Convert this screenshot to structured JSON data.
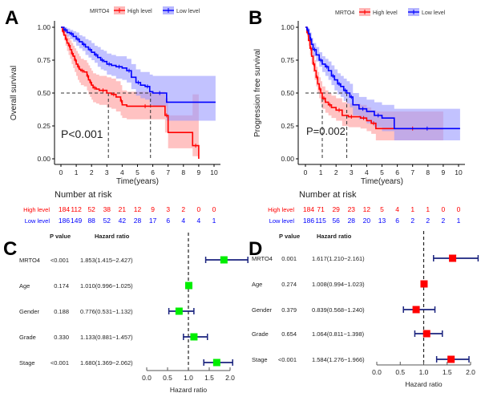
{
  "chart_data": [
    {
      "panel": "A",
      "type": "line",
      "subtype": "kaplan-meier",
      "legend_title": "MRTO4",
      "legend_position": "top",
      "xlabel": "Time(years)",
      "ylabel": "Overall survival",
      "xlim": [
        0,
        10
      ],
      "ylim": [
        0,
        1
      ],
      "xticks": [
        "0",
        "1",
        "2",
        "3",
        "4",
        "5",
        "6",
        "7",
        "8",
        "9",
        "10"
      ],
      "yticks": [
        "0.00",
        "0.25",
        "0.50",
        "0.75",
        "1.00"
      ],
      "pvalue_text": "P<0.001",
      "median_survival": {
        "High level": 3.1,
        "Low level": 5.85
      },
      "series": [
        {
          "name": "High level",
          "color": "#ff0000",
          "band_color": "#ff9999",
          "x": [
            0,
            0.1,
            0.2,
            0.3,
            0.4,
            0.5,
            0.6,
            0.7,
            0.8,
            0.9,
            1.0,
            1.1,
            1.2,
            1.3,
            1.5,
            1.7,
            1.8,
            1.9,
            2.0,
            2.1,
            2.3,
            2.5,
            3.0,
            3.3,
            3.6,
            3.9,
            4.0,
            4.3,
            6.7,
            6.8,
            7.0,
            8.6,
            9.0
          ],
          "y": [
            1.0,
            0.97,
            0.94,
            0.91,
            0.88,
            0.86,
            0.83,
            0.8,
            0.78,
            0.75,
            0.72,
            0.7,
            0.68,
            0.67,
            0.66,
            0.63,
            0.6,
            0.58,
            0.56,
            0.54,
            0.53,
            0.52,
            0.5,
            0.49,
            0.47,
            0.44,
            0.41,
            0.4,
            0.4,
            0.33,
            0.2,
            0.1,
            0.0
          ],
          "lower": [
            1.0,
            0.94,
            0.9,
            0.86,
            0.82,
            0.79,
            0.76,
            0.72,
            0.69,
            0.66,
            0.63,
            0.6,
            0.58,
            0.56,
            0.55,
            0.52,
            0.49,
            0.47,
            0.45,
            0.43,
            0.42,
            0.41,
            0.39,
            0.38,
            0.36,
            0.33,
            0.31,
            0.3,
            0.3,
            0.2,
            0.08,
            0.02,
            0.0
          ],
          "upper": [
            1.0,
            1.0,
            0.98,
            0.96,
            0.94,
            0.92,
            0.9,
            0.88,
            0.86,
            0.84,
            0.82,
            0.8,
            0.78,
            0.76,
            0.75,
            0.73,
            0.71,
            0.69,
            0.67,
            0.65,
            0.64,
            0.63,
            0.62,
            0.61,
            0.59,
            0.56,
            0.52,
            0.51,
            0.51,
            0.46,
            0.33,
            0.49,
            0.49
          ],
          "at_risk": [
            184,
            112,
            52,
            38,
            21,
            12,
            9,
            3,
            2,
            0,
            0
          ]
        },
        {
          "name": "Low level",
          "color": "#0000ff",
          "band_color": "#9999ff",
          "x": [
            0,
            0.2,
            0.4,
            0.6,
            0.8,
            1.0,
            1.2,
            1.4,
            1.6,
            1.8,
            2.0,
            2.2,
            2.4,
            2.6,
            2.8,
            3.0,
            3.3,
            3.6,
            4.0,
            4.3,
            4.6,
            4.9,
            5.2,
            5.5,
            5.8,
            6.0,
            6.9,
            10.1
          ],
          "y": [
            1.0,
            0.98,
            0.96,
            0.95,
            0.93,
            0.91,
            0.89,
            0.87,
            0.85,
            0.83,
            0.81,
            0.79,
            0.77,
            0.75,
            0.74,
            0.72,
            0.71,
            0.7,
            0.69,
            0.67,
            0.62,
            0.58,
            0.56,
            0.55,
            0.51,
            0.5,
            0.43,
            0.43
          ],
          "lower": [
            1.0,
            0.96,
            0.93,
            0.91,
            0.89,
            0.86,
            0.84,
            0.82,
            0.79,
            0.77,
            0.75,
            0.73,
            0.7,
            0.68,
            0.67,
            0.64,
            0.63,
            0.61,
            0.6,
            0.58,
            0.53,
            0.48,
            0.46,
            0.45,
            0.41,
            0.4,
            0.29,
            0.29
          ],
          "upper": [
            1.0,
            1.0,
            0.99,
            0.98,
            0.97,
            0.96,
            0.94,
            0.93,
            0.91,
            0.9,
            0.88,
            0.86,
            0.85,
            0.83,
            0.82,
            0.8,
            0.79,
            0.78,
            0.78,
            0.76,
            0.72,
            0.68,
            0.66,
            0.66,
            0.64,
            0.63,
            0.63,
            0.63
          ],
          "at_risk": [
            186,
            149,
            88,
            52,
            42,
            28,
            17,
            6,
            4,
            4,
            1
          ]
        }
      ]
    },
    {
      "panel": "B",
      "type": "line",
      "subtype": "kaplan-meier",
      "legend_title": "MRTO4",
      "legend_position": "top",
      "xlabel": "Time(years)",
      "ylabel": "Progression free survival",
      "xlim": [
        0,
        10
      ],
      "ylim": [
        0,
        1
      ],
      "xticks": [
        "0",
        "1",
        "2",
        "3",
        "4",
        "5",
        "6",
        "7",
        "8",
        "9",
        "10"
      ],
      "yticks": [
        "0.00",
        "0.25",
        "0.50",
        "0.75",
        "1.00"
      ],
      "pvalue_text": "P=0.002",
      "median_survival": {
        "High level": 1.1,
        "Low level": 2.7
      },
      "series": [
        {
          "name": "High level",
          "color": "#ff0000",
          "band_color": "#ff9999",
          "x": [
            0,
            0.1,
            0.2,
            0.3,
            0.4,
            0.5,
            0.6,
            0.7,
            0.8,
            0.9,
            1.0,
            1.1,
            1.3,
            1.5,
            1.7,
            2.0,
            2.4,
            2.8,
            3.2,
            3.6,
            4.0,
            4.3,
            4.6,
            5.0,
            9.0
          ],
          "y": [
            1.0,
            0.96,
            0.9,
            0.84,
            0.78,
            0.72,
            0.67,
            0.62,
            0.57,
            0.53,
            0.5,
            0.46,
            0.43,
            0.41,
            0.39,
            0.37,
            0.33,
            0.32,
            0.32,
            0.31,
            0.29,
            0.27,
            0.23,
            0.23,
            0.23
          ],
          "lower": [
            1.0,
            0.93,
            0.86,
            0.79,
            0.72,
            0.66,
            0.6,
            0.55,
            0.5,
            0.46,
            0.42,
            0.38,
            0.35,
            0.33,
            0.31,
            0.29,
            0.25,
            0.24,
            0.24,
            0.23,
            0.21,
            0.19,
            0.14,
            0.14,
            0.14
          ],
          "upper": [
            1.0,
            0.99,
            0.95,
            0.9,
            0.85,
            0.8,
            0.75,
            0.7,
            0.66,
            0.62,
            0.59,
            0.55,
            0.52,
            0.5,
            0.48,
            0.46,
            0.43,
            0.42,
            0.42,
            0.41,
            0.39,
            0.37,
            0.36,
            0.36,
            0.36
          ],
          "at_risk": [
            184,
            71,
            29,
            23,
            12,
            5,
            4,
            1,
            1,
            0,
            0
          ]
        },
        {
          "name": "Low level",
          "color": "#0000ff",
          "band_color": "#9999ff",
          "x": [
            0,
            0.1,
            0.2,
            0.3,
            0.4,
            0.5,
            0.7,
            0.9,
            1.1,
            1.3,
            1.5,
            1.7,
            1.9,
            2.1,
            2.3,
            2.5,
            2.7,
            2.9,
            3.1,
            3.5,
            4.0,
            4.5,
            5.0,
            5.8,
            10.1
          ],
          "y": [
            1.0,
            0.98,
            0.95,
            0.91,
            0.87,
            0.83,
            0.79,
            0.75,
            0.72,
            0.7,
            0.67,
            0.63,
            0.6,
            0.57,
            0.55,
            0.52,
            0.5,
            0.47,
            0.41,
            0.38,
            0.36,
            0.33,
            0.31,
            0.23,
            0.23
          ],
          "lower": [
            1.0,
            0.96,
            0.92,
            0.87,
            0.83,
            0.78,
            0.74,
            0.7,
            0.66,
            0.63,
            0.6,
            0.56,
            0.52,
            0.49,
            0.47,
            0.44,
            0.42,
            0.39,
            0.33,
            0.3,
            0.27,
            0.24,
            0.21,
            0.14,
            0.14
          ],
          "upper": [
            1.0,
            1.0,
            0.99,
            0.96,
            0.92,
            0.88,
            0.85,
            0.81,
            0.78,
            0.76,
            0.74,
            0.71,
            0.68,
            0.65,
            0.63,
            0.61,
            0.59,
            0.57,
            0.5,
            0.47,
            0.45,
            0.43,
            0.41,
            0.38,
            0.38
          ],
          "at_risk": [
            186,
            115,
            56,
            28,
            20,
            13,
            6,
            2,
            2,
            2,
            1
          ]
        }
      ]
    },
    {
      "panel": "C",
      "type": "scatter",
      "subtype": "forest-plot",
      "xlabel": "Hazard ratio",
      "xlim": [
        0,
        2
      ],
      "xticks": [
        "0.0",
        "0.5",
        "1.0",
        "1.5",
        "2.0"
      ],
      "reference_line": 1.0,
      "marker_color": "#00ee00",
      "ci_color": "#1a237e",
      "col_headers": {
        "pvalue": "P value",
        "hr": "Hazard ratio"
      },
      "rows": [
        {
          "variable": "MRTO4",
          "pvalue": "<0.001",
          "hr_text": "1.853(1.415−2.427)",
          "hr": 1.853,
          "lo": 1.415,
          "hi": 2.427
        },
        {
          "variable": "Age",
          "pvalue": "0.174",
          "hr_text": "1.010(0.996−1.025)",
          "hr": 1.01,
          "lo": 0.996,
          "hi": 1.025
        },
        {
          "variable": "Gender",
          "pvalue": "0.188",
          "hr_text": "0.776(0.531−1.132)",
          "hr": 0.776,
          "lo": 0.531,
          "hi": 1.132
        },
        {
          "variable": "Grade",
          "pvalue": "0.330",
          "hr_text": "1.133(0.881−1.457)",
          "hr": 1.133,
          "lo": 0.881,
          "hi": 1.457
        },
        {
          "variable": "Stage",
          "pvalue": "<0.001",
          "hr_text": "1.680(1.369−2.062)",
          "hr": 1.68,
          "lo": 1.369,
          "hi": 2.062
        }
      ]
    },
    {
      "panel": "D",
      "type": "scatter",
      "subtype": "forest-plot",
      "xlabel": "Hazard ratio",
      "xlim": [
        0,
        2
      ],
      "xticks": [
        "0.0",
        "0.5",
        "1.0",
        "1.5",
        "2.0"
      ],
      "reference_line": 1.0,
      "marker_color": "#ff0000",
      "ci_color": "#1a237e",
      "col_headers": {
        "pvalue": "P value",
        "hr": "Hazard ratio"
      },
      "rows": [
        {
          "variable": "MRTO4",
          "pvalue": "0.001",
          "hr_text": "1.617(1.210−2.161)",
          "hr": 1.617,
          "lo": 1.21,
          "hi": 2.161
        },
        {
          "variable": "Age",
          "pvalue": "0.274",
          "hr_text": "1.008(0.994−1.023)",
          "hr": 1.008,
          "lo": 0.994,
          "hi": 1.023
        },
        {
          "variable": "Gender",
          "pvalue": "0.379",
          "hr_text": "0.839(0.568−1.240)",
          "hr": 0.839,
          "lo": 0.568,
          "hi": 1.24
        },
        {
          "variable": "Grade",
          "pvalue": "0.654",
          "hr_text": "1.064(0.811−1.398)",
          "hr": 1.064,
          "lo": 0.811,
          "hi": 1.398
        },
        {
          "variable": "Stage",
          "pvalue": "<0.001",
          "hr_text": "1.584(1.276−1.966)",
          "hr": 1.584,
          "lo": 1.276,
          "hi": 1.966
        }
      ]
    }
  ],
  "risk_table": {
    "title": "Number at risk",
    "row_labels": [
      "High level",
      "Low level"
    ]
  },
  "panel_labels": [
    "A",
    "B",
    "C",
    "D"
  ]
}
